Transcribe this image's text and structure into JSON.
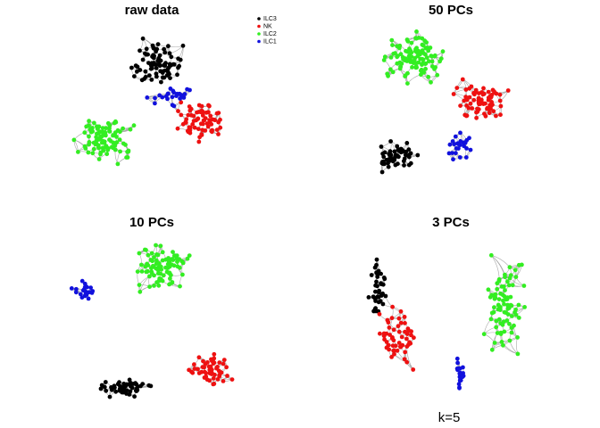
{
  "panels": [
    {
      "title": "raw data"
    },
    {
      "title": "50 PCs"
    },
    {
      "title": "10 PCs"
    },
    {
      "title": "3 PCs"
    }
  ],
  "legend": [
    {
      "label": "ILC3",
      "color": "#000000"
    },
    {
      "label": "NK",
      "color": "#ee1111"
    },
    {
      "label": "ILC2",
      "color": "#33ee22"
    },
    {
      "label": "ILC1",
      "color": "#1111dd"
    }
  ],
  "caption": "k=5"
}
